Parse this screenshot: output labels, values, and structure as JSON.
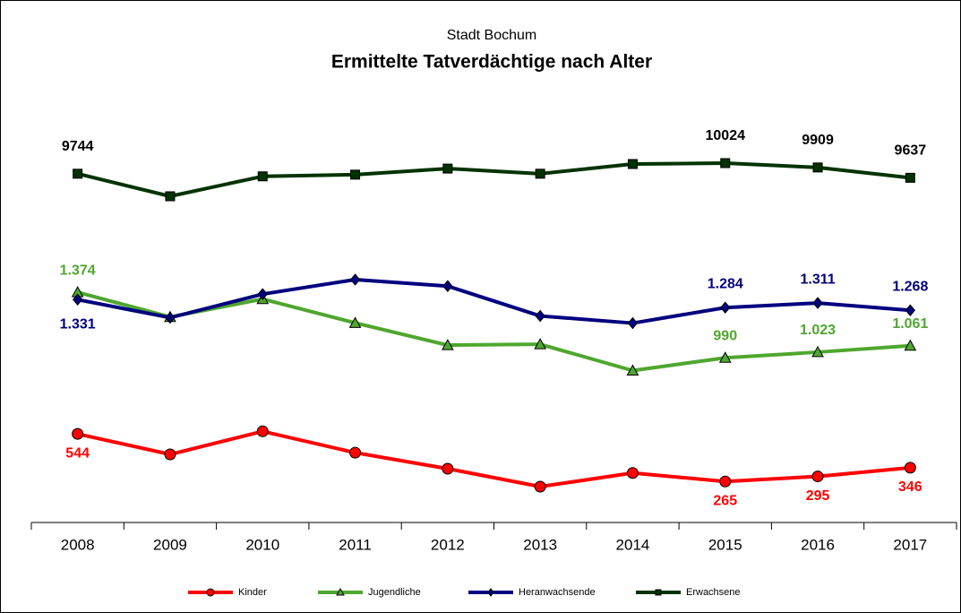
{
  "chart_data": {
    "type": "line",
    "subtitle": "Stadt Bochum",
    "title": "Ermittelte Tatverdächtige nach Alter",
    "categories": [
      "2008",
      "2009",
      "2010",
      "2011",
      "2012",
      "2013",
      "2014",
      "2015",
      "2016",
      "2017"
    ],
    "series": [
      {
        "name": "Kinder",
        "color": "#ff0000",
        "marker": "circle",
        "values": [
          544,
          424,
          559,
          434,
          340,
          235,
          315,
          265,
          295,
          346
        ],
        "value_labels": [
          "544",
          null,
          null,
          null,
          null,
          null,
          null,
          "265",
          "295",
          "346"
        ]
      },
      {
        "name": "Jugendliche",
        "color": "#4ea72e",
        "marker": "triangle",
        "values": [
          1374,
          1229,
          1334,
          1194,
          1064,
          1069,
          915,
          990,
          1023,
          1061
        ],
        "value_labels": [
          "1.374",
          null,
          null,
          null,
          null,
          null,
          null,
          "990",
          "1.023",
          "1.061"
        ]
      },
      {
        "name": "Heranwachsende",
        "color": "#000080",
        "marker": "diamond",
        "values": [
          1331,
          1225,
          1363,
          1448,
          1410,
          1235,
          1193,
          1284,
          1311,
          1268
        ],
        "value_labels": [
          "1.331",
          null,
          null,
          null,
          null,
          null,
          null,
          "1.284",
          "1.311",
          "1.268"
        ]
      },
      {
        "name": "Erwachsene",
        "color": "#003300",
        "marker": "square",
        "values": [
          9744,
          9150,
          9675,
          9720,
          9880,
          9744,
          10000,
          10024,
          9909,
          9637
        ],
        "value_labels": [
          "9744",
          null,
          null,
          null,
          null,
          null,
          null,
          "10024",
          "9909",
          "9637"
        ]
      }
    ]
  }
}
